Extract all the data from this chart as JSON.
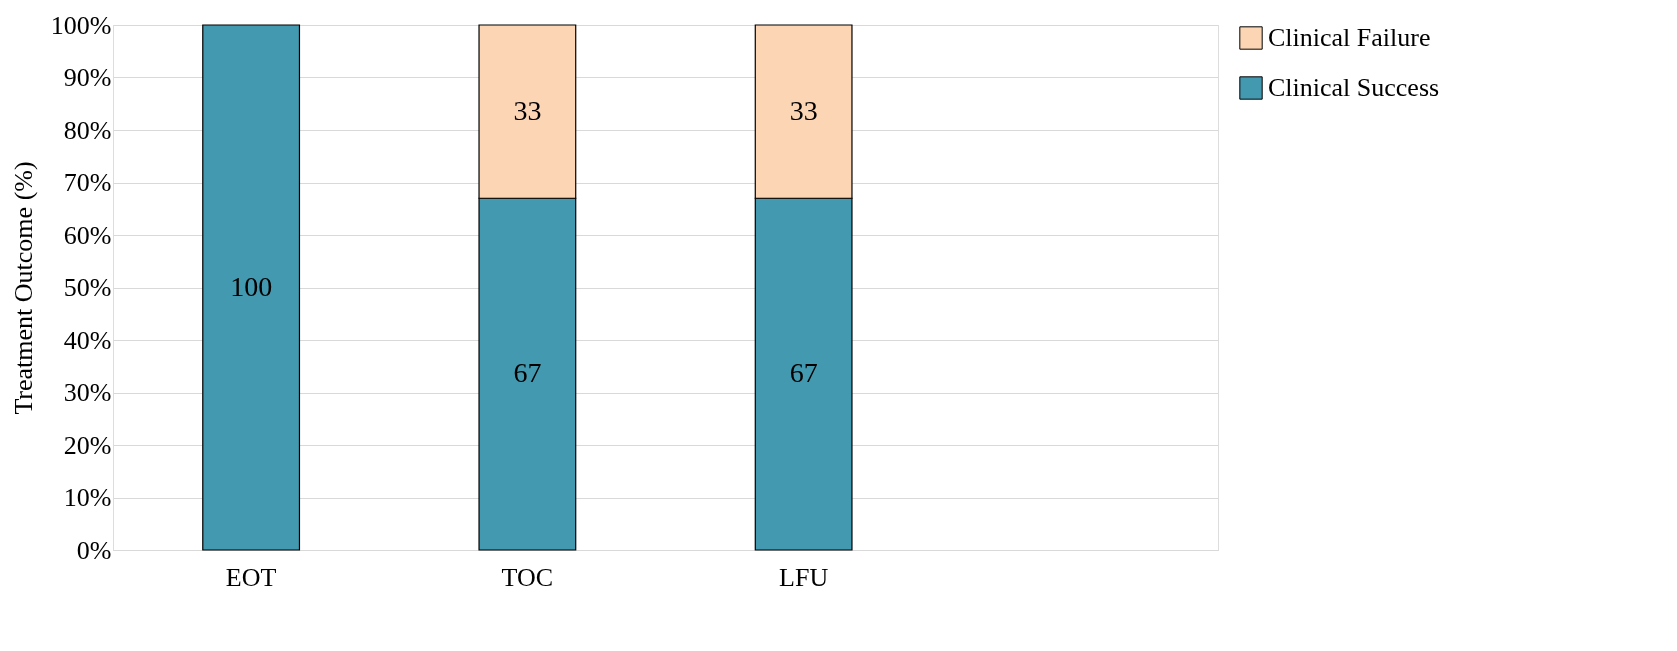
{
  "chart_data": {
    "type": "bar",
    "stacked": true,
    "ylabel": "Treatment Outcome (%)",
    "categories": [
      "EOT",
      "TOC",
      "LFU",
      null
    ],
    "series": [
      {
        "name": "Clinical Success",
        "color": "#4399b0",
        "values": [
          100,
          67,
          67,
          null
        ]
      },
      {
        "name": "Clinical Failure",
        "color": "#fcd5b4",
        "values": [
          null,
          33,
          33,
          null
        ]
      }
    ],
    "ylim": [
      0,
      100
    ],
    "yticks": [
      {
        "value": 0,
        "label": "0%"
      },
      {
        "value": 10,
        "label": "10%"
      },
      {
        "value": 20,
        "label": "20%"
      },
      {
        "value": 30,
        "label": "30%"
      },
      {
        "value": 40,
        "label": "40%"
      },
      {
        "value": 50,
        "label": "50%"
      },
      {
        "value": 60,
        "label": "60%"
      },
      {
        "value": 70,
        "label": "70%"
      },
      {
        "value": 80,
        "label": "80%"
      },
      {
        "value": 90,
        "label": "90%"
      },
      {
        "value": 100,
        "label": "100%"
      }
    ],
    "grid": "y",
    "legend": "top right",
    "data_labels": true
  }
}
